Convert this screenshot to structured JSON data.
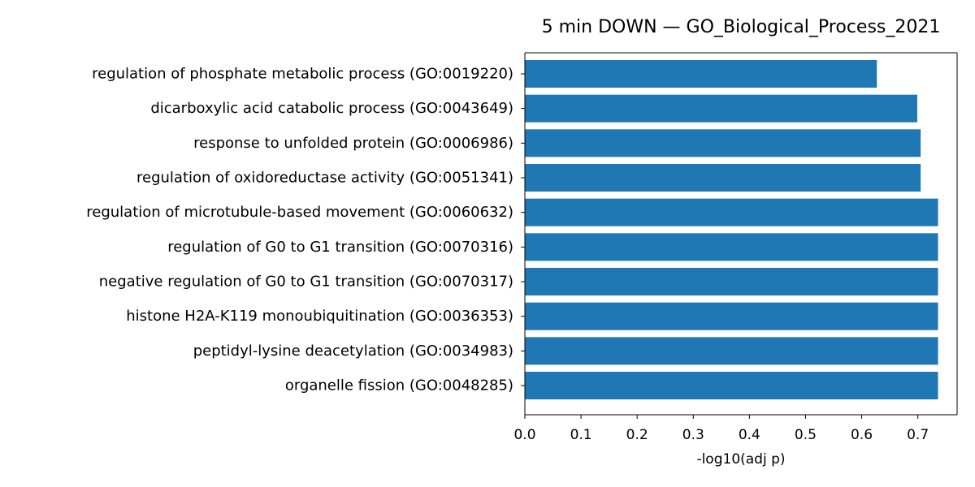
{
  "chart_data": {
    "type": "bar",
    "orientation": "horizontal",
    "title": "5 min DOWN — GO_Biological_Process_2021",
    "xlabel": "-log10(adj p)",
    "ylabel": "",
    "xlim": [
      0,
      0.77
    ],
    "xticks": [
      "0.0",
      "0.1",
      "0.2",
      "0.3",
      "0.4",
      "0.5",
      "0.6",
      "0.7"
    ],
    "bar_color": "#1f77b4",
    "grid": false,
    "categories": [
      "regulation of phosphate metabolic process (GO:0019220)",
      "dicarboxylic acid catabolic process (GO:0043649)",
      "response to unfolded protein (GO:0006986)",
      "regulation of oxidoreductase activity (GO:0051341)",
      "regulation of microtubule-based movement (GO:0060632)",
      "regulation of G0 to G1 transition (GO:0070316)",
      "negative regulation of G0 to G1 transition (GO:0070317)",
      "histone H2A-K119 monoubiquitination (GO:0036353)",
      "peptidyl-lysine deacetylation (GO:0034983)",
      "organelle fission (GO:0048285)"
    ],
    "values": [
      0.627,
      0.699,
      0.705,
      0.705,
      0.736,
      0.736,
      0.736,
      0.736,
      0.736,
      0.736
    ]
  }
}
